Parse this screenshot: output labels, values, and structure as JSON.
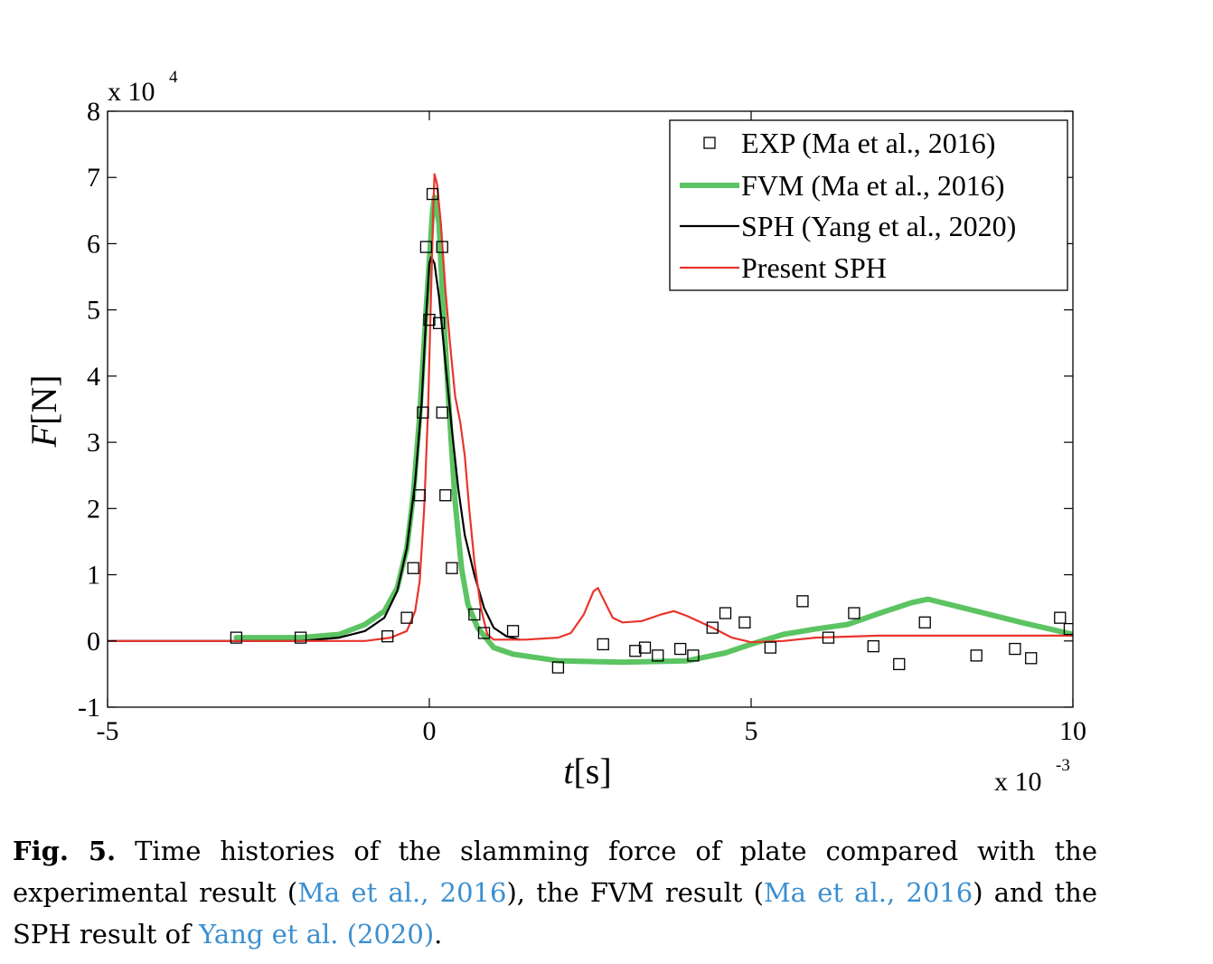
{
  "chart_data": {
    "type": "line",
    "xlabel_italic": "t",
    "xlabel_unit": "[s]",
    "ylabel_italic": "F",
    "ylabel_unit": "[N]",
    "x_multiplier_base": "x 10",
    "x_multiplier_exp": "-3",
    "y_multiplier_base": "x 10",
    "y_multiplier_exp": "4",
    "xlim": [
      -5,
      10
    ],
    "ylim": [
      -1,
      8
    ],
    "x_ticks": [
      -5,
      0,
      5,
      10
    ],
    "x_tick_labels": [
      "-5",
      "0",
      "5",
      "10"
    ],
    "y_ticks": [
      -1,
      0,
      1,
      2,
      3,
      4,
      5,
      6,
      7,
      8
    ],
    "y_tick_labels": [
      "-1",
      "0",
      "1",
      "2",
      "3",
      "4",
      "5",
      "6",
      "7",
      "8"
    ],
    "grid": false,
    "legend_position": "top-right",
    "series": [
      {
        "name": "EXP (Ma et al., 2016)",
        "style": "square-markers",
        "color": "#000000",
        "points": [
          [
            -3.0,
            0.05
          ],
          [
            -2.0,
            0.05
          ],
          [
            -0.65,
            0.07
          ],
          [
            -0.35,
            0.35
          ],
          [
            -0.25,
            1.1
          ],
          [
            -0.15,
            2.2
          ],
          [
            -0.1,
            3.45
          ],
          [
            -0.05,
            5.95
          ],
          [
            0.0,
            4.85
          ],
          [
            0.05,
            6.75
          ],
          [
            0.15,
            4.8
          ],
          [
            0.2,
            5.95
          ],
          [
            0.2,
            3.45
          ],
          [
            0.25,
            2.2
          ],
          [
            0.35,
            1.1
          ],
          [
            0.7,
            0.4
          ],
          [
            0.85,
            0.12
          ],
          [
            1.3,
            0.15
          ],
          [
            2.0,
            -0.4
          ],
          [
            2.7,
            -0.05
          ],
          [
            3.2,
            -0.15
          ],
          [
            3.35,
            -0.1
          ],
          [
            3.55,
            -0.22
          ],
          [
            3.9,
            -0.12
          ],
          [
            4.1,
            -0.22
          ],
          [
            4.4,
            0.2
          ],
          [
            4.6,
            0.42
          ],
          [
            4.9,
            0.28
          ],
          [
            5.3,
            -0.1
          ],
          [
            5.8,
            0.6
          ],
          [
            6.2,
            0.05
          ],
          [
            6.6,
            0.42
          ],
          [
            6.9,
            -0.08
          ],
          [
            7.3,
            -0.35
          ],
          [
            7.7,
            0.28
          ],
          [
            8.5,
            -0.22
          ],
          [
            9.1,
            -0.12
          ],
          [
            9.35,
            -0.26
          ],
          [
            9.8,
            0.35
          ],
          [
            9.95,
            0.18
          ]
        ]
      },
      {
        "name": "FVM (Ma et al., 2016)",
        "style": "thick-line",
        "color": "#5cc462",
        "points": [
          [
            -3.0,
            0.05
          ],
          [
            -2.0,
            0.05
          ],
          [
            -1.4,
            0.1
          ],
          [
            -1.0,
            0.25
          ],
          [
            -0.7,
            0.45
          ],
          [
            -0.5,
            0.8
          ],
          [
            -0.35,
            1.4
          ],
          [
            -0.25,
            2.2
          ],
          [
            -0.15,
            3.4
          ],
          [
            -0.05,
            5.0
          ],
          [
            0.05,
            6.5
          ],
          [
            0.08,
            6.7
          ],
          [
            0.15,
            6.3
          ],
          [
            0.2,
            5.3
          ],
          [
            0.3,
            3.6
          ],
          [
            0.4,
            2.1
          ],
          [
            0.5,
            1.1
          ],
          [
            0.6,
            0.55
          ],
          [
            0.75,
            0.2
          ],
          [
            1.0,
            -0.1
          ],
          [
            1.3,
            -0.2
          ],
          [
            2.0,
            -0.3
          ],
          [
            3.0,
            -0.32
          ],
          [
            4.0,
            -0.3
          ],
          [
            4.6,
            -0.18
          ],
          [
            5.0,
            -0.05
          ],
          [
            5.5,
            0.1
          ],
          [
            6.0,
            0.18
          ],
          [
            6.5,
            0.25
          ],
          [
            7.0,
            0.42
          ],
          [
            7.5,
            0.58
          ],
          [
            7.75,
            0.63
          ],
          [
            8.5,
            0.45
          ],
          [
            9.2,
            0.28
          ],
          [
            10.0,
            0.1
          ]
        ]
      },
      {
        "name": "SPH (Yang et al., 2020)",
        "style": "thin-line",
        "color": "#000000",
        "points": [
          [
            -5.0,
            0.0
          ],
          [
            -2.0,
            0.0
          ],
          [
            -1.4,
            0.05
          ],
          [
            -1.0,
            0.15
          ],
          [
            -0.7,
            0.35
          ],
          [
            -0.5,
            0.75
          ],
          [
            -0.35,
            1.4
          ],
          [
            -0.22,
            2.4
          ],
          [
            -0.12,
            3.6
          ],
          [
            -0.05,
            4.9
          ],
          [
            0.0,
            5.7
          ],
          [
            0.03,
            5.8
          ],
          [
            0.08,
            5.7
          ],
          [
            0.15,
            5.2
          ],
          [
            0.25,
            4.2
          ],
          [
            0.35,
            3.2
          ],
          [
            0.45,
            2.3
          ],
          [
            0.55,
            1.6
          ],
          [
            0.7,
            1.0
          ],
          [
            0.85,
            0.5
          ],
          [
            1.0,
            0.2
          ],
          [
            1.2,
            0.07
          ],
          [
            1.4,
            0.02
          ]
        ]
      },
      {
        "name": "Present SPH",
        "style": "thin-line",
        "color": "#e8352c",
        "points": [
          [
            -5.0,
            0.0
          ],
          [
            -2.0,
            0.0
          ],
          [
            -1.0,
            0.0
          ],
          [
            -0.6,
            0.05
          ],
          [
            -0.35,
            0.15
          ],
          [
            -0.22,
            0.45
          ],
          [
            -0.15,
            0.9
          ],
          [
            -0.08,
            2.0
          ],
          [
            -0.02,
            3.5
          ],
          [
            0.02,
            5.0
          ],
          [
            0.06,
            6.5
          ],
          [
            0.08,
            7.05
          ],
          [
            0.12,
            6.9
          ],
          [
            0.18,
            6.3
          ],
          [
            0.25,
            5.3
          ],
          [
            0.32,
            4.5
          ],
          [
            0.4,
            3.7
          ],
          [
            0.48,
            3.3
          ],
          [
            0.55,
            2.8
          ],
          [
            0.62,
            2.0
          ],
          [
            0.7,
            1.2
          ],
          [
            0.8,
            0.5
          ],
          [
            0.9,
            0.1
          ],
          [
            1.0,
            0.02
          ],
          [
            1.5,
            0.02
          ],
          [
            2.0,
            0.05
          ],
          [
            2.2,
            0.12
          ],
          [
            2.4,
            0.4
          ],
          [
            2.55,
            0.75
          ],
          [
            2.62,
            0.8
          ],
          [
            2.72,
            0.6
          ],
          [
            2.85,
            0.35
          ],
          [
            3.0,
            0.28
          ],
          [
            3.3,
            0.3
          ],
          [
            3.6,
            0.4
          ],
          [
            3.8,
            0.45
          ],
          [
            4.0,
            0.38
          ],
          [
            4.4,
            0.2
          ],
          [
            4.7,
            0.05
          ],
          [
            5.0,
            -0.02
          ],
          [
            5.5,
            0.0
          ],
          [
            6.0,
            0.05
          ],
          [
            7.0,
            0.08
          ],
          [
            8.0,
            0.08
          ],
          [
            9.0,
            0.08
          ],
          [
            10.0,
            0.08
          ]
        ]
      }
    ]
  },
  "caption": {
    "label": "Fig. 5.",
    "text_1": " Time histories of the slamming force of plate compared with the experimental result (",
    "ref_1": "Ma et al., 2016",
    "text_2": "), the FVM result (",
    "ref_2": "Ma et al., 2016",
    "text_3": ") and the SPH result of ",
    "ref_3": "Yang et al. (2020)",
    "text_4": "."
  }
}
